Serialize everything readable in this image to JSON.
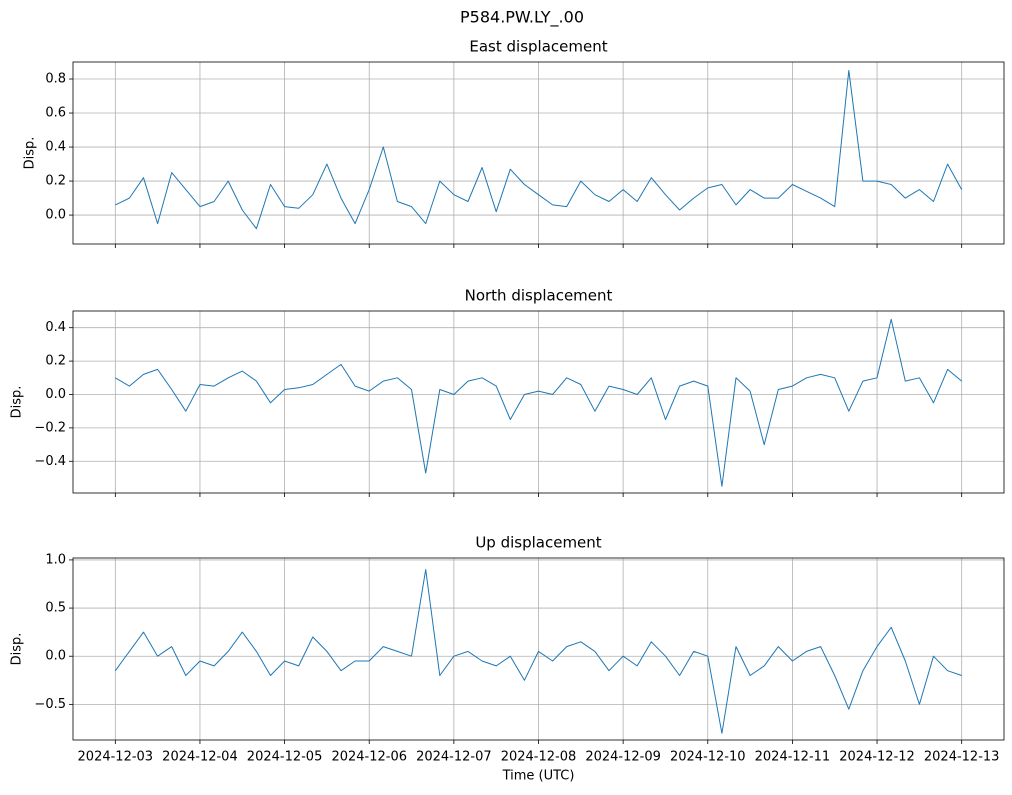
{
  "title": "P584.PW.LY_.00",
  "chart_data": [
    {
      "type": "line",
      "title": "East displacement",
      "ylabel": "Disp.",
      "x": [
        "2024-12-03T00:00",
        "2024-12-03T04:00",
        "2024-12-03T08:00",
        "2024-12-03T12:00",
        "2024-12-03T16:00",
        "2024-12-03T20:00",
        "2024-12-04T00:00",
        "2024-12-04T04:00",
        "2024-12-04T08:00",
        "2024-12-04T12:00",
        "2024-12-04T16:00",
        "2024-12-04T20:00",
        "2024-12-05T00:00",
        "2024-12-05T04:00",
        "2024-12-05T08:00",
        "2024-12-05T12:00",
        "2024-12-05T16:00",
        "2024-12-05T20:00",
        "2024-12-06T00:00",
        "2024-12-06T04:00",
        "2024-12-06T08:00",
        "2024-12-06T12:00",
        "2024-12-06T16:00",
        "2024-12-06T20:00",
        "2024-12-07T00:00",
        "2024-12-07T04:00",
        "2024-12-07T08:00",
        "2024-12-07T12:00",
        "2024-12-07T16:00",
        "2024-12-07T20:00",
        "2024-12-08T00:00",
        "2024-12-08T04:00",
        "2024-12-08T08:00",
        "2024-12-08T12:00",
        "2024-12-08T16:00",
        "2024-12-08T20:00",
        "2024-12-09T00:00",
        "2024-12-09T04:00",
        "2024-12-09T08:00",
        "2024-12-09T12:00",
        "2024-12-09T16:00",
        "2024-12-09T20:00",
        "2024-12-10T00:00",
        "2024-12-10T04:00",
        "2024-12-10T08:00",
        "2024-12-10T12:00",
        "2024-12-10T16:00",
        "2024-12-10T20:00",
        "2024-12-11T00:00",
        "2024-12-11T04:00",
        "2024-12-11T08:00",
        "2024-12-11T12:00",
        "2024-12-11T16:00",
        "2024-12-11T20:00",
        "2024-12-12T00:00",
        "2024-12-12T04:00",
        "2024-12-12T08:00",
        "2024-12-12T12:00",
        "2024-12-12T16:00",
        "2024-12-12T20:00",
        "2024-12-13T00:00"
      ],
      "series": [
        {
          "name": "East",
          "color": "#1f77b4",
          "values": [
            0.06,
            0.1,
            0.22,
            -0.05,
            0.25,
            0.15,
            0.05,
            0.08,
            0.2,
            0.03,
            -0.08,
            0.18,
            0.05,
            0.04,
            0.12,
            0.3,
            0.1,
            -0.05,
            0.15,
            0.4,
            0.08,
            0.05,
            -0.05,
            0.2,
            0.12,
            0.08,
            0.28,
            0.02,
            0.27,
            0.18,
            0.12,
            0.06,
            0.05,
            0.2,
            0.12,
            0.08,
            0.15,
            0.08,
            0.22,
            0.12,
            0.03,
            0.1,
            0.16,
            0.18,
            0.06,
            0.15,
            0.1,
            0.1,
            0.18,
            0.14,
            0.1,
            0.05,
            0.85,
            0.2,
            0.2,
            0.18,
            0.1,
            0.15,
            0.08,
            0.3,
            0.15
          ]
        }
      ],
      "xlim": [
        "2024-12-02T12:00",
        "2024-12-13T12:00"
      ],
      "xticks": [
        "2024-12-03",
        "2024-12-04",
        "2024-12-05",
        "2024-12-06",
        "2024-12-07",
        "2024-12-08",
        "2024-12-09",
        "2024-12-10",
        "2024-12-11",
        "2024-12-12",
        "2024-12-13"
      ],
      "ylim": [
        -0.17,
        0.9
      ],
      "yticks": [
        {
          "value": 0,
          "label": "0.0"
        },
        0.2,
        0.4,
        0.6,
        0.8
      ],
      "grid": true
    },
    {
      "type": "line",
      "title": "North displacement",
      "ylabel": "Disp.",
      "x": [
        "2024-12-03T00:00",
        "2024-12-03T04:00",
        "2024-12-03T08:00",
        "2024-12-03T12:00",
        "2024-12-03T16:00",
        "2024-12-03T20:00",
        "2024-12-04T00:00",
        "2024-12-04T04:00",
        "2024-12-04T08:00",
        "2024-12-04T12:00",
        "2024-12-04T16:00",
        "2024-12-04T20:00",
        "2024-12-05T00:00",
        "2024-12-05T04:00",
        "2024-12-05T08:00",
        "2024-12-05T12:00",
        "2024-12-05T16:00",
        "2024-12-05T20:00",
        "2024-12-06T00:00",
        "2024-12-06T04:00",
        "2024-12-06T08:00",
        "2024-12-06T12:00",
        "2024-12-06T16:00",
        "2024-12-06T20:00",
        "2024-12-07T00:00",
        "2024-12-07T04:00",
        "2024-12-07T08:00",
        "2024-12-07T12:00",
        "2024-12-07T16:00",
        "2024-12-07T20:00",
        "2024-12-08T00:00",
        "2024-12-08T04:00",
        "2024-12-08T08:00",
        "2024-12-08T12:00",
        "2024-12-08T16:00",
        "2024-12-08T20:00",
        "2024-12-09T00:00",
        "2024-12-09T04:00",
        "2024-12-09T08:00",
        "2024-12-09T12:00",
        "2024-12-09T16:00",
        "2024-12-09T20:00",
        "2024-12-10T00:00",
        "2024-12-10T04:00",
        "2024-12-10T08:00",
        "2024-12-10T12:00",
        "2024-12-10T16:00",
        "2024-12-10T20:00",
        "2024-12-11T00:00",
        "2024-12-11T04:00",
        "2024-12-11T08:00",
        "2024-12-11T12:00",
        "2024-12-11T16:00",
        "2024-12-11T20:00",
        "2024-12-12T00:00",
        "2024-12-12T04:00",
        "2024-12-12T08:00",
        "2024-12-12T12:00",
        "2024-12-12T16:00",
        "2024-12-12T20:00",
        "2024-12-13T00:00"
      ],
      "series": [
        {
          "name": "North",
          "color": "#1f77b4",
          "values": [
            0.1,
            0.05,
            0.12,
            0.15,
            0.03,
            -0.1,
            0.06,
            0.05,
            0.1,
            0.14,
            0.08,
            -0.05,
            0.03,
            0.04,
            0.06,
            0.12,
            0.18,
            0.05,
            0.02,
            0.08,
            0.1,
            0.03,
            -0.47,
            0.03,
            0.0,
            0.08,
            0.1,
            0.05,
            -0.15,
            0.0,
            0.02,
            0.0,
            0.1,
            0.06,
            -0.1,
            0.05,
            0.03,
            0.0,
            0.1,
            -0.15,
            0.05,
            0.08,
            0.05,
            -0.55,
            0.1,
            0.02,
            -0.3,
            0.03,
            0.05,
            0.1,
            0.12,
            0.1,
            -0.1,
            0.08,
            0.1,
            0.45,
            0.08,
            0.1,
            -0.05,
            0.15,
            0.08
          ]
        }
      ],
      "xlim": [
        "2024-12-02T12:00",
        "2024-12-13T12:00"
      ],
      "xticks": [
        "2024-12-03",
        "2024-12-04",
        "2024-12-05",
        "2024-12-06",
        "2024-12-07",
        "2024-12-08",
        "2024-12-09",
        "2024-12-10",
        "2024-12-11",
        "2024-12-12",
        "2024-12-13"
      ],
      "ylim": [
        -0.59,
        0.5
      ],
      "yticks": [
        {
          "value": -0.4,
          "label": "−0.4"
        },
        {
          "value": -0.2,
          "label": "−0.2"
        },
        {
          "value": 0,
          "label": "0.0"
        },
        0.2,
        0.4
      ],
      "grid": true
    },
    {
      "type": "line",
      "title": "Up displacement",
      "ylabel": "Disp.",
      "xlabel": "Time (UTC)",
      "x": [
        "2024-12-03T00:00",
        "2024-12-03T04:00",
        "2024-12-03T08:00",
        "2024-12-03T12:00",
        "2024-12-03T16:00",
        "2024-12-03T20:00",
        "2024-12-04T00:00",
        "2024-12-04T04:00",
        "2024-12-04T08:00",
        "2024-12-04T12:00",
        "2024-12-04T16:00",
        "2024-12-04T20:00",
        "2024-12-05T00:00",
        "2024-12-05T04:00",
        "2024-12-05T08:00",
        "2024-12-05T12:00",
        "2024-12-05T16:00",
        "2024-12-05T20:00",
        "2024-12-06T00:00",
        "2024-12-06T04:00",
        "2024-12-06T08:00",
        "2024-12-06T12:00",
        "2024-12-06T16:00",
        "2024-12-06T20:00",
        "2024-12-07T00:00",
        "2024-12-07T04:00",
        "2024-12-07T08:00",
        "2024-12-07T12:00",
        "2024-12-07T16:00",
        "2024-12-07T20:00",
        "2024-12-08T00:00",
        "2024-12-08T04:00",
        "2024-12-08T08:00",
        "2024-12-08T12:00",
        "2024-12-08T16:00",
        "2024-12-08T20:00",
        "2024-12-09T00:00",
        "2024-12-09T04:00",
        "2024-12-09T08:00",
        "2024-12-09T12:00",
        "2024-12-09T16:00",
        "2024-12-09T20:00",
        "2024-12-10T00:00",
        "2024-12-10T04:00",
        "2024-12-10T08:00",
        "2024-12-10T12:00",
        "2024-12-10T16:00",
        "2024-12-10T20:00",
        "2024-12-11T00:00",
        "2024-12-11T04:00",
        "2024-12-11T08:00",
        "2024-12-11T12:00",
        "2024-12-11T16:00",
        "2024-12-11T20:00",
        "2024-12-12T00:00",
        "2024-12-12T04:00",
        "2024-12-12T08:00",
        "2024-12-12T12:00",
        "2024-12-12T16:00",
        "2024-12-12T20:00",
        "2024-12-13T00:00"
      ],
      "series": [
        {
          "name": "Up",
          "color": "#1f77b4",
          "values": [
            -0.15,
            0.05,
            0.25,
            0.0,
            0.1,
            -0.2,
            -0.05,
            -0.1,
            0.05,
            0.25,
            0.05,
            -0.2,
            -0.05,
            -0.1,
            0.2,
            0.05,
            -0.15,
            -0.05,
            -0.05,
            0.1,
            0.05,
            0.0,
            0.9,
            -0.2,
            0.0,
            0.05,
            -0.05,
            -0.1,
            0.0,
            -0.25,
            0.05,
            -0.05,
            0.1,
            0.15,
            0.05,
            -0.15,
            0.0,
            -0.1,
            0.15,
            0.0,
            -0.2,
            0.05,
            0.0,
            -0.8,
            0.1,
            -0.2,
            -0.1,
            0.1,
            -0.05,
            0.05,
            0.1,
            -0.2,
            -0.55,
            -0.15,
            0.1,
            0.3,
            -0.05,
            -0.5,
            0.0,
            -0.15,
            -0.2
          ]
        }
      ],
      "xlim": [
        "2024-12-02T12:00",
        "2024-12-13T12:00"
      ],
      "xticks": [
        "2024-12-03",
        "2024-12-04",
        "2024-12-05",
        "2024-12-06",
        "2024-12-07",
        "2024-12-08",
        "2024-12-09",
        "2024-12-10",
        "2024-12-11",
        "2024-12-12",
        "2024-12-13"
      ],
      "ylim": [
        -0.87,
        1.02
      ],
      "yticks": [
        {
          "value": -0.5,
          "label": "−0.5"
        },
        {
          "value": 0,
          "label": "0.0"
        },
        {
          "value": 0.5,
          "label": "0.5"
        },
        {
          "value": 1,
          "label": "1.0"
        }
      ],
      "grid": true
    }
  ]
}
